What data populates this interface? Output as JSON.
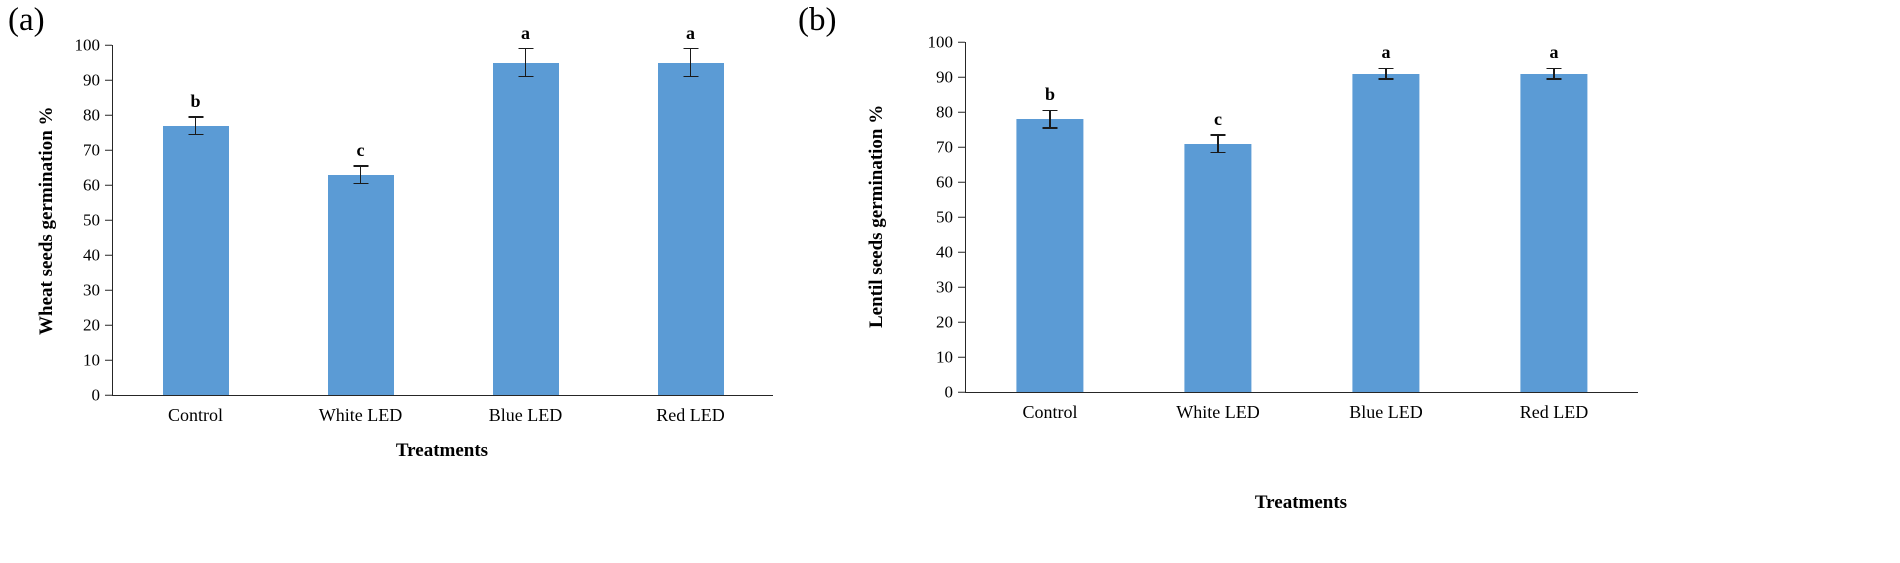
{
  "figure": {
    "background": "#ffffff",
    "bar_color": "#5B9BD5",
    "axis_color": "#262626"
  },
  "chart_data": [
    {
      "type": "bar",
      "panel_label": "(a)",
      "title": "",
      "ylabel": "Wheat  seeds germination %",
      "xlabel": "Treatments",
      "categories": [
        "Control",
        "White LED",
        "Blue LED",
        "Red LED"
      ],
      "values": [
        77,
        63,
        95,
        95
      ],
      "errors": [
        2.5,
        2.5,
        4,
        4
      ],
      "sig_letters": [
        "b",
        "c",
        "a",
        "a"
      ],
      "ylim": [
        0,
        100
      ],
      "ytick_step": 10,
      "bar_color": "#5B9BD5",
      "grid": false,
      "legend": "none"
    },
    {
      "type": "bar",
      "panel_label": "(b)",
      "title": "",
      "ylabel": "Lentil seeds germination %",
      "xlabel": "Treatments",
      "categories": [
        "Control",
        "White LED",
        "Blue LED",
        "Red LED"
      ],
      "values": [
        78,
        71,
        91,
        91
      ],
      "errors": [
        2.5,
        2.5,
        1.5,
        1.5
      ],
      "sig_letters": [
        "b",
        "c",
        "a",
        "a"
      ],
      "ylim": [
        0,
        100
      ],
      "ytick_step": 10,
      "bar_color": "#5B9BD5",
      "grid": false,
      "legend": "none"
    }
  ]
}
